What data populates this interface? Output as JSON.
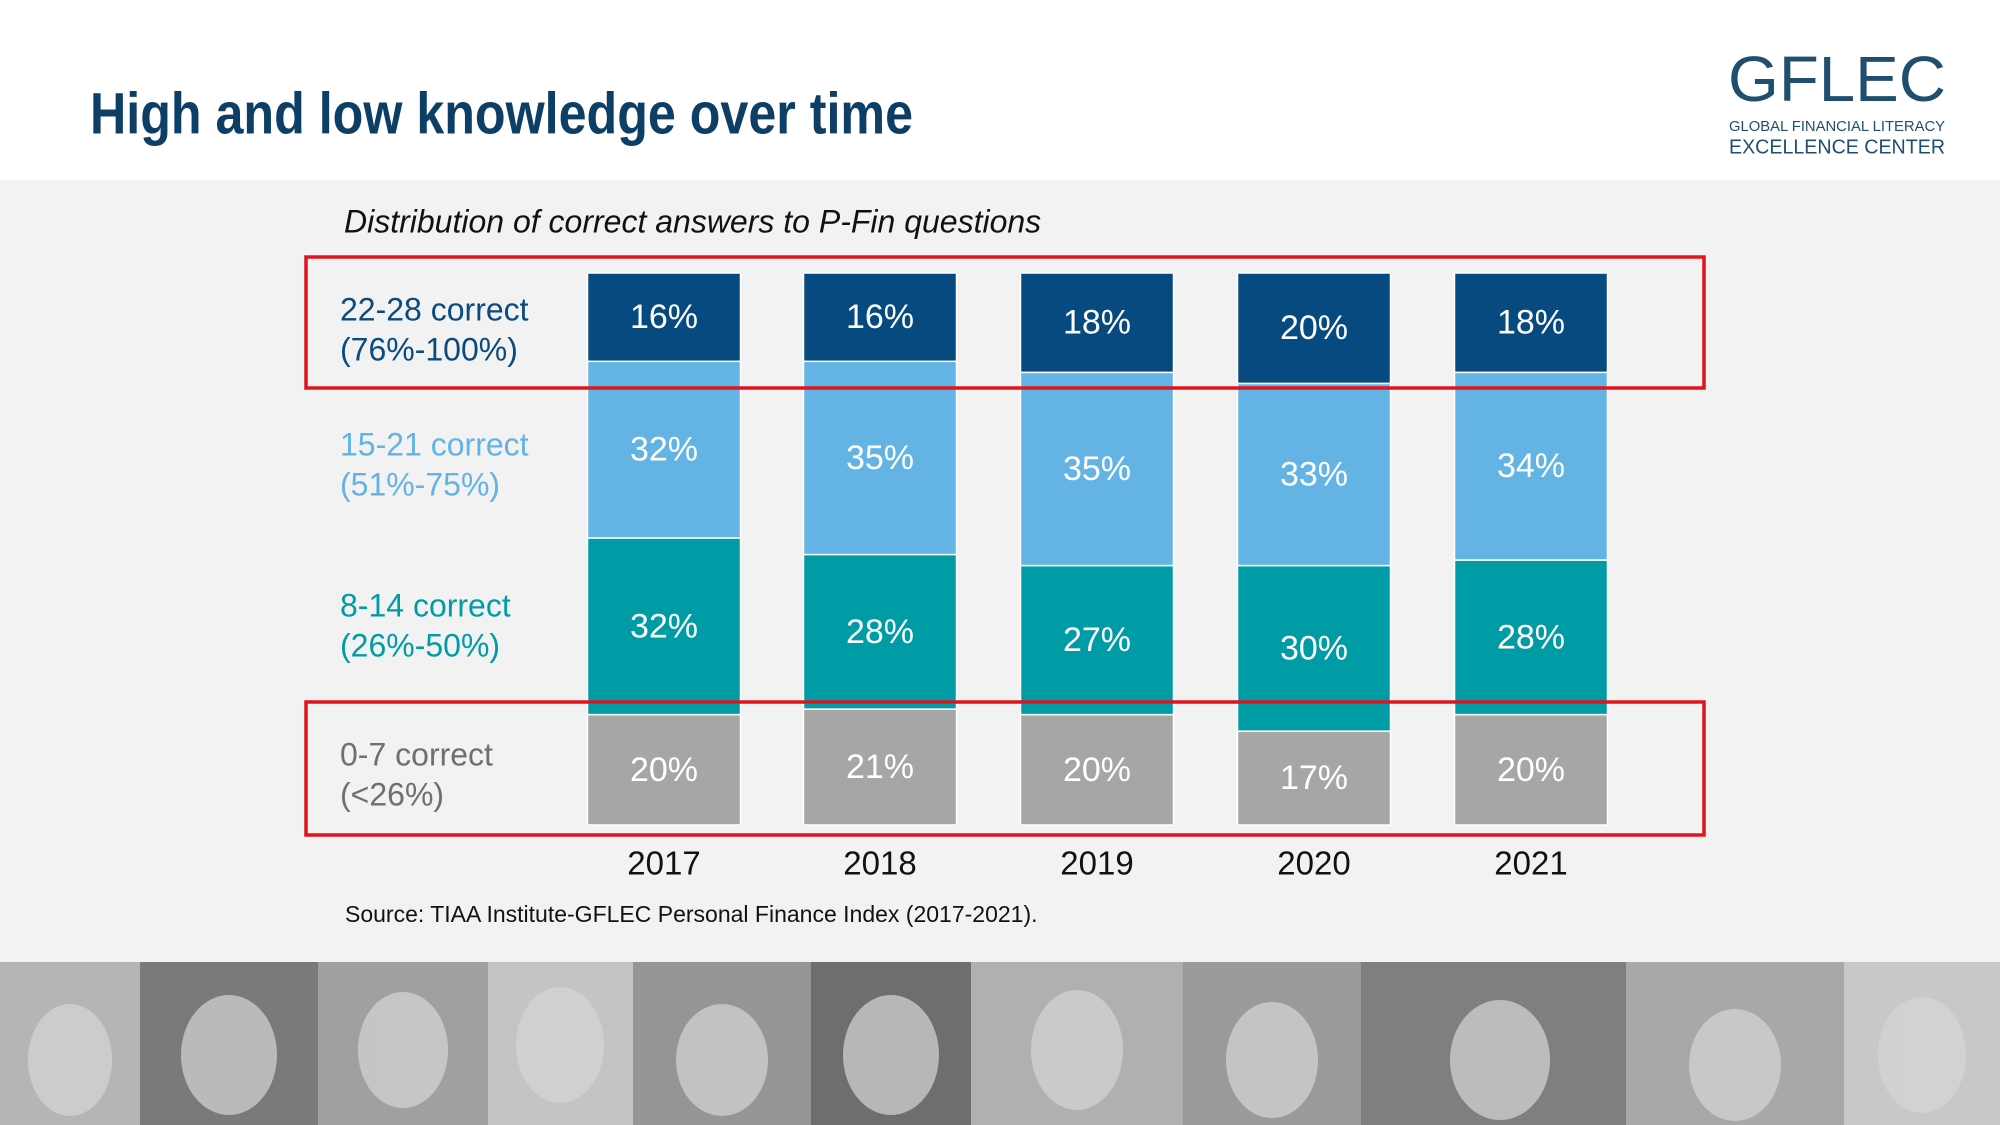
{
  "chart_data": {
    "type": "stacked_bar",
    "title": "High and low knowledge over time",
    "subtitle": "Distribution of correct answers to P-Fin questions",
    "source": "Source: TIAA Institute-GFLEC Personal Finance Index (2017-2021).",
    "logo": {
      "name": "GFLEC",
      "line1": "GLOBAL FINANCIAL LITERACY",
      "line2": "EXCELLENCE CENTER"
    },
    "categories": [
      "2017",
      "2018",
      "2019",
      "2020",
      "2021"
    ],
    "ylim": [
      0,
      100
    ],
    "series": [
      {
        "name": "0-7 correct",
        "sublabel": "(<26%)",
        "color": "#a6a6a6",
        "label_color": "#6f6f6f",
        "values": [
          20,
          21,
          20,
          17,
          20
        ],
        "value_labels": [
          "20%",
          "21%",
          "20%",
          "17%",
          "20%"
        ]
      },
      {
        "name": "8-14 correct",
        "sublabel": "(26%-50%)",
        "color": "#009ca6",
        "label_color": "#009ca6",
        "values": [
          32,
          28,
          27,
          30,
          28
        ],
        "value_labels": [
          "32%",
          "28%",
          "27%",
          "30%",
          "28%"
        ]
      },
      {
        "name": "15-21 correct",
        "sublabel": "(51%-75%)",
        "color": "#63b4e4",
        "label_color": "#63b4e4",
        "values": [
          32,
          35,
          35,
          33,
          34
        ],
        "value_labels": [
          "32%",
          "35%",
          "35%",
          "33%",
          "34%"
        ]
      },
      {
        "name": "22-28 correct",
        "sublabel": "(76%-100%)",
        "color": "#064a80",
        "label_color": "#0b4a7e",
        "values": [
          16,
          16,
          18,
          20,
          18
        ],
        "value_labels": [
          "16%",
          "16%",
          "18%",
          "20%",
          "18%"
        ]
      }
    ]
  }
}
